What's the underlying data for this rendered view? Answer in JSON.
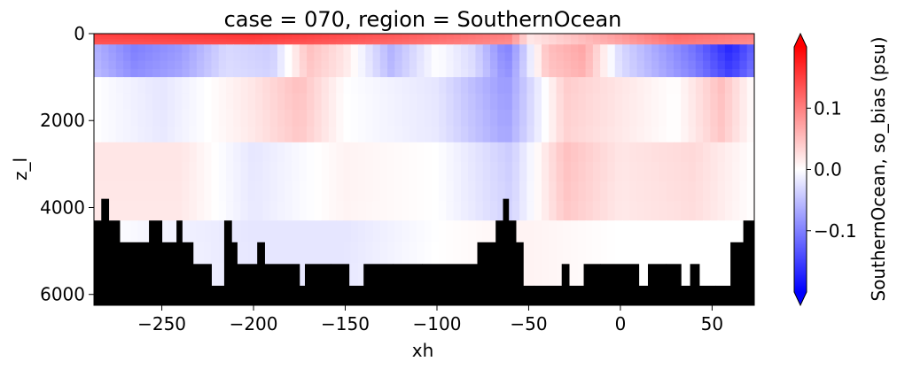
{
  "chart_data": {
    "type": "heatmap",
    "title": "case = 070, region = SouthernOcean",
    "xlabel": "xh",
    "ylabel": "z_l",
    "xlim": [
      -287,
      73
    ],
    "ylim": [
      6250,
      0
    ],
    "y_inverted": true,
    "x_ticks": [
      -250,
      -200,
      -150,
      -100,
      -50,
      0,
      50
    ],
    "x_tick_labels": [
      "−250",
      "−200",
      "−150",
      "−100",
      "−50",
      "0",
      "50"
    ],
    "y_ticks": [
      0,
      2000,
      4000,
      6000
    ],
    "y_tick_labels": [
      "0",
      "2000",
      "4000",
      "6000"
    ],
    "colorbar": {
      "label": "SouthernOcean, so_bias (psu)",
      "colormap": "bwr",
      "vmin": -0.2,
      "vmax": 0.2,
      "extend": "both",
      "ticks": [
        -0.1,
        0.0,
        0.1
      ],
      "tick_labels": [
        "−0.1",
        "0.0",
        "0.1"
      ],
      "colors": {
        "negative": "#0000ff",
        "zero": "#ffffff",
        "positive": "#ff0000"
      }
    },
    "land_mask_color": "#000000",
    "depth_bands": [
      {
        "z_top": 0,
        "z_bottom": 250,
        "description": "surface layer, mostly positive bias",
        "profile": [
          {
            "x": -287,
            "value": 0.15
          },
          {
            "x": -200,
            "value": 0.16
          },
          {
            "x": -120,
            "value": 0.13
          },
          {
            "x": -60,
            "value": 0.1
          },
          {
            "x": -50,
            "value": 0.02
          },
          {
            "x": 0,
            "value": 0.08
          },
          {
            "x": 30,
            "value": 0.12
          },
          {
            "x": 73,
            "value": 0.1
          }
        ]
      },
      {
        "z_top": 250,
        "z_bottom": 1000,
        "description": "upper layer",
        "profile": [
          {
            "x": -287,
            "value": -0.06
          },
          {
            "x": -265,
            "value": -0.1
          },
          {
            "x": -240,
            "value": -0.08
          },
          {
            "x": -215,
            "value": -0.03
          },
          {
            "x": -190,
            "value": -0.04
          },
          {
            "x": -170,
            "value": 0.05
          },
          {
            "x": -150,
            "value": 0.02
          },
          {
            "x": -125,
            "value": -0.06
          },
          {
            "x": -100,
            "value": 0.0
          },
          {
            "x": -80,
            "value": -0.03
          },
          {
            "x": -62,
            "value": -0.1
          },
          {
            "x": -55,
            "value": -0.06
          },
          {
            "x": -40,
            "value": 0.05
          },
          {
            "x": -20,
            "value": 0.07
          },
          {
            "x": 0,
            "value": -0.03
          },
          {
            "x": 20,
            "value": -0.07
          },
          {
            "x": 40,
            "value": -0.11
          },
          {
            "x": 60,
            "value": -0.17
          },
          {
            "x": 73,
            "value": -0.12
          }
        ]
      },
      {
        "z_top": 1000,
        "z_bottom": 2500,
        "description": "intermediate layer",
        "profile": [
          {
            "x": -287,
            "value": 0.0
          },
          {
            "x": -250,
            "value": -0.02
          },
          {
            "x": -200,
            "value": 0.02
          },
          {
            "x": -175,
            "value": 0.05
          },
          {
            "x": -150,
            "value": 0.0
          },
          {
            "x": -100,
            "value": -0.02
          },
          {
            "x": -62,
            "value": -0.08
          },
          {
            "x": -30,
            "value": 0.04
          },
          {
            "x": 0,
            "value": 0.02
          },
          {
            "x": 30,
            "value": 0.0
          },
          {
            "x": 55,
            "value": 0.05
          },
          {
            "x": 73,
            "value": 0.0
          }
        ]
      },
      {
        "z_top": 2500,
        "z_bottom": 4300,
        "description": "deep layer",
        "profile": [
          {
            "x": -287,
            "value": 0.02
          },
          {
            "x": -240,
            "value": 0.02
          },
          {
            "x": -200,
            "value": -0.02
          },
          {
            "x": -150,
            "value": 0.01
          },
          {
            "x": -100,
            "value": 0.0
          },
          {
            "x": -60,
            "value": -0.04
          },
          {
            "x": -30,
            "value": 0.05
          },
          {
            "x": 0,
            "value": 0.02
          },
          {
            "x": 40,
            "value": 0.03
          },
          {
            "x": 73,
            "value": 0.0
          }
        ]
      },
      {
        "z_top": 4300,
        "z_bottom": 6250,
        "description": "abyssal layer",
        "profile": [
          {
            "x": -287,
            "value": 0.0
          },
          {
            "x": -200,
            "value": -0.02
          },
          {
            "x": -150,
            "value": -0.02
          },
          {
            "x": -100,
            "value": 0.0
          },
          {
            "x": -50,
            "value": 0.01
          },
          {
            "x": 0,
            "value": 0.0
          },
          {
            "x": 73,
            "value": 0.0
          }
        ]
      }
    ],
    "bottom_depth": [
      {
        "x0": -287,
        "x1": -283,
        "z": 4300
      },
      {
        "x0": -283,
        "x1": -279,
        "z": 3800
      },
      {
        "x0": -279,
        "x1": -273,
        "z": 4300
      },
      {
        "x0": -273,
        "x1": -257,
        "z": 4800
      },
      {
        "x0": -257,
        "x1": -250,
        "z": 4300
      },
      {
        "x0": -250,
        "x1": -242,
        "z": 4800
      },
      {
        "x0": -242,
        "x1": -239,
        "z": 4300
      },
      {
        "x0": -239,
        "x1": -233,
        "z": 4800
      },
      {
        "x0": -233,
        "x1": -223,
        "z": 5300
      },
      {
        "x0": -223,
        "x1": -216,
        "z": 5800
      },
      {
        "x0": -216,
        "x1": -212,
        "z": 4300
      },
      {
        "x0": -212,
        "x1": -209,
        "z": 4800
      },
      {
        "x0": -209,
        "x1": -198,
        "z": 5300
      },
      {
        "x0": -198,
        "x1": -194,
        "z": 4800
      },
      {
        "x0": -194,
        "x1": -175,
        "z": 5300
      },
      {
        "x0": -175,
        "x1": -172,
        "z": 5800
      },
      {
        "x0": -172,
        "x1": -158,
        "z": 5300
      },
      {
        "x0": -158,
        "x1": -148,
        "z": 5300
      },
      {
        "x0": -148,
        "x1": -140,
        "z": 5800
      },
      {
        "x0": -140,
        "x1": -124,
        "z": 5300
      },
      {
        "x0": -124,
        "x1": -108,
        "z": 5300
      },
      {
        "x0": -108,
        "x1": -78,
        "z": 5300
      },
      {
        "x0": -78,
        "x1": -68,
        "z": 4800
      },
      {
        "x0": -68,
        "x1": -64,
        "z": 4300
      },
      {
        "x0": -64,
        "x1": -61,
        "z": 3800
      },
      {
        "x0": -61,
        "x1": -57,
        "z": 4300
      },
      {
        "x0": -57,
        "x1": -53,
        "z": 4800
      },
      {
        "x0": -53,
        "x1": -47,
        "z": 5800
      },
      {
        "x0": -47,
        "x1": -32,
        "z": 5800
      },
      {
        "x0": -32,
        "x1": -28,
        "z": 5300
      },
      {
        "x0": -28,
        "x1": -20,
        "z": 5800
      },
      {
        "x0": -20,
        "x1": -11,
        "z": 5300
      },
      {
        "x0": -11,
        "x1": 10,
        "z": 5300
      },
      {
        "x0": 10,
        "x1": 15,
        "z": 5800
      },
      {
        "x0": 15,
        "x1": 25,
        "z": 5300
      },
      {
        "x0": 25,
        "x1": 33,
        "z": 5300
      },
      {
        "x0": 33,
        "x1": 38,
        "z": 5800
      },
      {
        "x0": 38,
        "x1": 43,
        "z": 5300
      },
      {
        "x0": 43,
        "x1": 52,
        "z": 5800
      },
      {
        "x0": 52,
        "x1": 60,
        "z": 5800
      },
      {
        "x0": 60,
        "x1": 67,
        "z": 4800
      },
      {
        "x0": 67,
        "x1": 73,
        "z": 4300
      }
    ]
  }
}
